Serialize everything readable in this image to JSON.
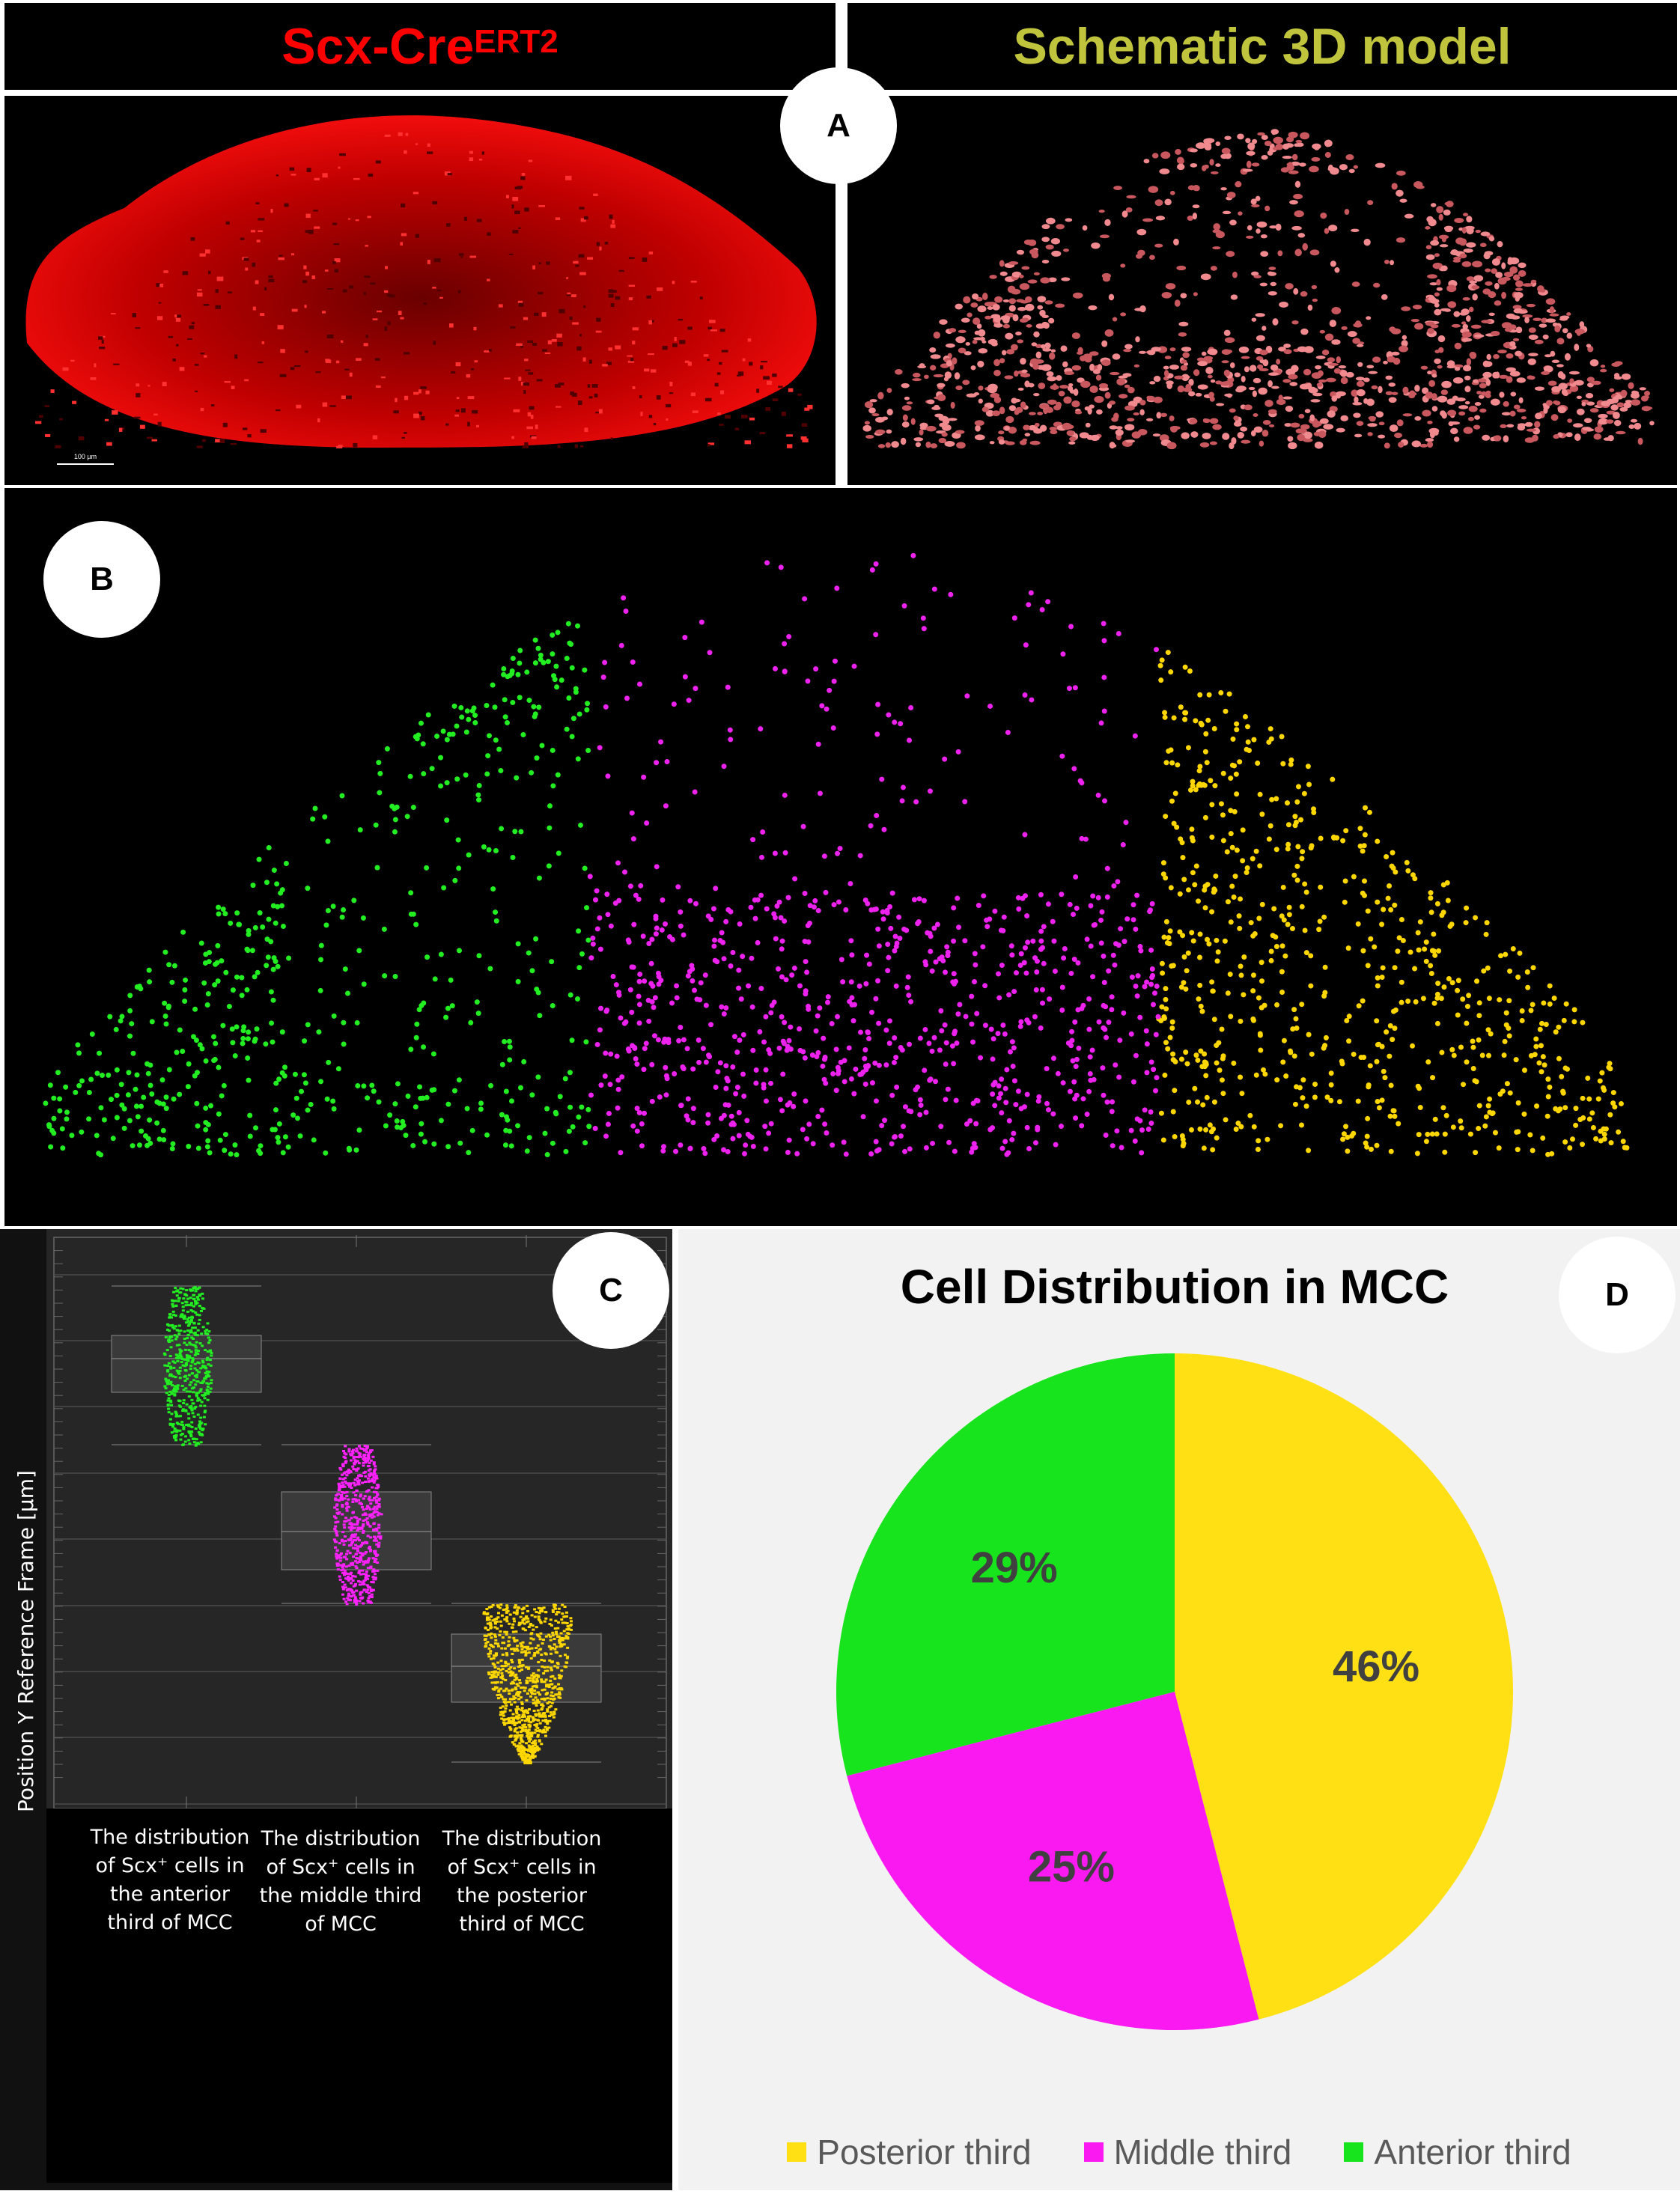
{
  "panel_a": {
    "label": "A",
    "left_title": "Scx-Cre",
    "left_title_sup": "ERT2",
    "right_title": "Schematic 3D model",
    "scale_bar": "100 µm",
    "colors": {
      "left_title": "#ff0000",
      "right_title": "#bfc43c",
      "signal": "#ff1a1a",
      "model": "#e8757a"
    }
  },
  "panel_b": {
    "label": "B",
    "colors": {
      "anterior": "#22ee22",
      "middle": "#ee22ee",
      "posterior": "#ffd700"
    }
  },
  "panel_c": {
    "label": "C"
  },
  "panel_d": {
    "label": "D"
  },
  "chart_data": [
    {
      "type": "box",
      "ylabel": "Position Y Reference Frame [µm]",
      "categories": [
        "The distribution of Scx⁺ cells in the anterior third of MCC",
        "The distribution of Scx⁺ cells in the middle third of MCC",
        "The distribution of Scx⁺ cells in the posterior third of MCC"
      ],
      "colors": [
        "#22ee22",
        "#ff22ff",
        "#ffd700"
      ],
      "grid": true,
      "background": "#262626"
    },
    {
      "type": "pie",
      "title": "Cell Distribution in MCC",
      "slices": [
        {
          "name": "Posterior third",
          "value": 46,
          "label": "46%",
          "color": "#ffe014"
        },
        {
          "name": "Middle third",
          "value": 25,
          "label": "25%",
          "color": "#fa19f0"
        },
        {
          "name": "Anterior third",
          "value": 29,
          "label": "29%",
          "color": "#17e41c"
        }
      ],
      "legend": "bottom"
    }
  ]
}
